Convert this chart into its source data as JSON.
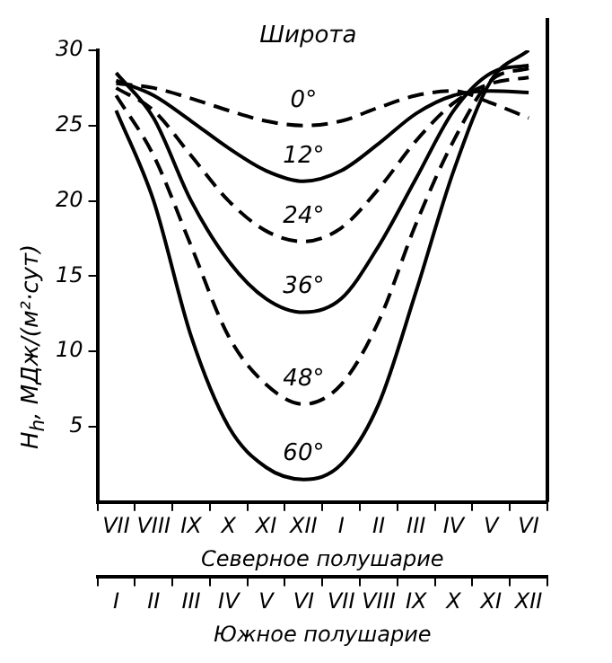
{
  "chart_data": {
    "type": "line",
    "legend_title": "Широта",
    "ylabel": "H$_{h}$, МДж/(м²·сут)",
    "xlabel": "Северное полушарие",
    "x2label": "Южное полушарие",
    "categories": [
      "VII",
      "VIII",
      "IX",
      "X",
      "XI",
      "XII",
      "I",
      "II",
      "III",
      "IV",
      "V",
      "VI"
    ],
    "series": [
      {
        "name": "0°",
        "color": "#000000",
        "line_style": "dashed",
        "values": [
          27.8,
          27.5,
          26.8,
          26,
          25.3,
          25,
          25.3,
          26.2,
          27,
          27.3,
          26.5,
          25.5
        ]
      },
      {
        "name": "12°",
        "color": "#000000",
        "line_style": "solid",
        "values": [
          28,
          27,
          25.3,
          23.5,
          22,
          21.3,
          22,
          23.8,
          25.8,
          27,
          27.3,
          27.2
        ]
      },
      {
        "name": "24°",
        "color": "#000000",
        "line_style": "dashed",
        "values": [
          27.5,
          26,
          23,
          20,
          18,
          17.3,
          18.2,
          20.8,
          24,
          26.5,
          27.8,
          28.2
        ]
      },
      {
        "name": "36°",
        "color": "#000000",
        "line_style": "solid",
        "values": [
          28.5,
          25.5,
          20,
          16,
          13.5,
          12.6,
          13.5,
          17,
          21.5,
          26,
          28.5,
          29
        ]
      },
      {
        "name": "48°",
        "color": "#000000",
        "line_style": "dashed",
        "values": [
          27,
          23,
          17,
          11,
          7.8,
          6.5,
          7.8,
          12,
          18.5,
          24,
          28,
          28.8
        ]
      },
      {
        "name": "60°",
        "color": "#000000",
        "line_style": "solid",
        "values": [
          26,
          20,
          11,
          5,
          2.3,
          1.5,
          2.5,
          6.5,
          14,
          22,
          28,
          30
        ]
      }
    ],
    "annotations": [
      "I",
      "II",
      "III",
      "IV",
      "V",
      "VI",
      "VII",
      "VIII",
      "IX",
      "X",
      "XI",
      "XII"
    ],
    "ylim": [
      0,
      30
    ],
    "yticks": [
      5,
      10,
      15,
      20,
      25,
      30
    ],
    "grid": false,
    "legend": false,
    "marker": "none"
  }
}
